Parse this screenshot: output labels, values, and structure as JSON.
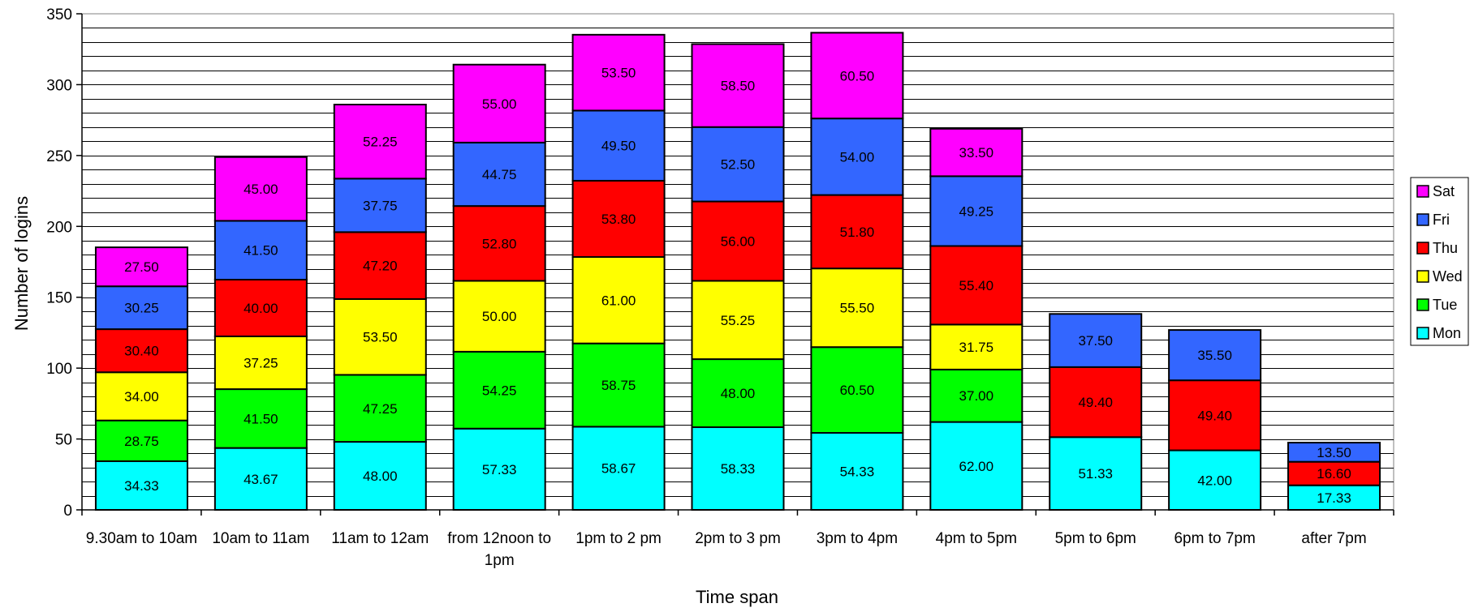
{
  "chart_data": {
    "type": "bar",
    "stacked": true,
    "xlabel": "Time span",
    "ylabel": "Number of logins",
    "ylim": [
      0,
      350
    ],
    "y_major_ticks": [
      0,
      50,
      100,
      150,
      200,
      250,
      300,
      350
    ],
    "y_minor_step": 10,
    "grid": true,
    "legend_position": "right",
    "categories": [
      "9.30am to 10am",
      "10am to 11am",
      "11am to 12am",
      "from 12noon to 1pm",
      "1pm to 2 pm",
      "2pm to 3 pm",
      "3pm to 4pm",
      "4pm to 5pm",
      "5pm to 6pm",
      "6pm to 7pm",
      "after 7pm"
    ],
    "category_label_lines": [
      [
        "9.30am to 10am"
      ],
      [
        "10am to 11am"
      ],
      [
        "11am to 12am"
      ],
      [
        "from 12noon to",
        "1pm"
      ],
      [
        "1pm to 2 pm"
      ],
      [
        "2pm to 3 pm"
      ],
      [
        "3pm to 4pm"
      ],
      [
        "4pm to 5pm"
      ],
      [
        "5pm to 6pm"
      ],
      [
        "6pm to 7pm"
      ],
      [
        "after 7pm"
      ]
    ],
    "series": [
      {
        "name": "Mon",
        "color": "#00FFFF",
        "values": [
          34.33,
          43.67,
          48.0,
          57.33,
          58.67,
          58.33,
          54.33,
          62.0,
          51.33,
          42.0,
          17.33
        ],
        "labels": [
          "34.33",
          "43.67",
          "48.00",
          "57.33",
          "58.67",
          "58.33",
          "54.33",
          "62.00",
          "51.33",
          "42.00",
          "17.33"
        ]
      },
      {
        "name": "Tue",
        "color": "#00FF00",
        "values": [
          28.75,
          41.5,
          47.25,
          54.25,
          58.75,
          48.0,
          60.5,
          37.0,
          null,
          null,
          null
        ],
        "labels": [
          "28.75",
          "41.50",
          "47.25",
          "54.25",
          "58.75",
          "48.00",
          "60.50",
          "37.00",
          null,
          null,
          null
        ]
      },
      {
        "name": "Wed",
        "color": "#FFFF00",
        "values": [
          34.0,
          37.25,
          53.5,
          50.0,
          61.0,
          55.25,
          55.5,
          31.75,
          null,
          null,
          null
        ],
        "labels": [
          "34.00",
          "37.25",
          "53.50",
          "50.00",
          "61.00",
          "55.25",
          "55.50",
          "31.75",
          null,
          null,
          null
        ]
      },
      {
        "name": "Thu",
        "color": "#FF0000",
        "values": [
          30.4,
          40.0,
          47.2,
          52.8,
          53.8,
          56.0,
          51.8,
          55.4,
          49.4,
          49.4,
          16.6
        ],
        "labels": [
          "30.40",
          "40.00",
          "47.20",
          "52.80",
          "53.80",
          "56.00",
          "51.80",
          "55.40",
          "49.40",
          "49.40",
          "16.60"
        ]
      },
      {
        "name": "Fri",
        "color": "#3366FF",
        "values": [
          30.25,
          41.5,
          37.75,
          44.75,
          49.5,
          52.5,
          54.0,
          49.25,
          37.5,
          35.5,
          13.5
        ],
        "labels": [
          "30.25",
          "41.50",
          "37.75",
          "44.75",
          "49.50",
          "52.50",
          "54.00",
          "49.25",
          "37.50",
          "35.50",
          "13.50"
        ]
      },
      {
        "name": "Sat",
        "color": "#FF00FF",
        "values": [
          27.5,
          45.0,
          52.25,
          55.0,
          53.5,
          58.5,
          60.5,
          33.5,
          null,
          null,
          null
        ],
        "labels": [
          "27.50",
          "45.00",
          "52.25",
          "55.00",
          "53.50",
          "58.50",
          "60.50",
          "33.50",
          null,
          null,
          null
        ]
      }
    ],
    "legend_order": [
      "Sat",
      "Fri",
      "Thu",
      "Wed",
      "Tue",
      "Mon"
    ]
  }
}
